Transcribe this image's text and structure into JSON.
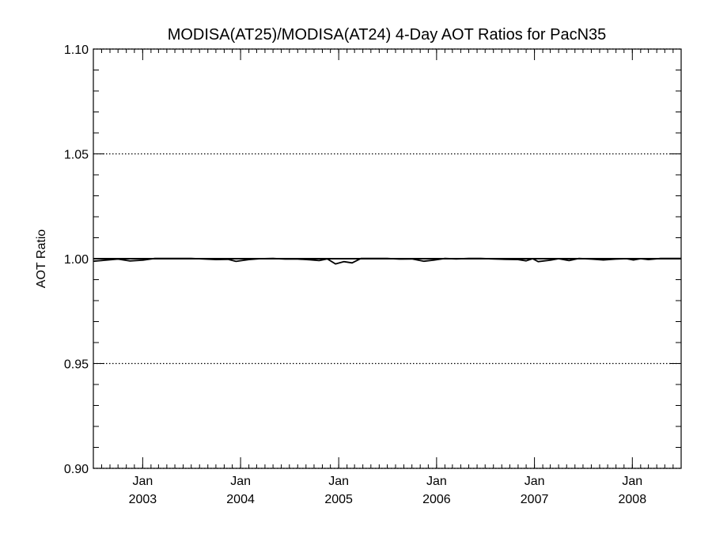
{
  "chart_data": {
    "type": "line",
    "title": "MODISA(AT25)/MODISA(AT24) 4-Day AOT Ratios for PacN35",
    "xlabel": "",
    "ylabel": "AOT Ratio",
    "xlim": [
      "2002-07-01",
      "2008-07-01"
    ],
    "ylim": [
      0.9,
      1.1
    ],
    "y_ticks": [
      "0.90",
      "0.95",
      "1.00",
      "1.05",
      "1.10"
    ],
    "x_ticks": [
      {
        "month": "Jan",
        "year": "2003",
        "date": "2003-01-01"
      },
      {
        "month": "Jan",
        "year": "2004",
        "date": "2004-01-01"
      },
      {
        "month": "Jan",
        "year": "2005",
        "date": "2005-01-01"
      },
      {
        "month": "Jan",
        "year": "2006",
        "date": "2006-01-01"
      },
      {
        "month": "Jan",
        "year": "2007",
        "date": "2007-01-01"
      },
      {
        "month": "Jan",
        "year": "2008",
        "date": "2008-01-01"
      }
    ],
    "grid": "horizontal dotted at major y ticks",
    "reference_line": 1.0,
    "series": [
      {
        "color": "#000000",
        "points": [
          [
            "2002-07-01",
            0.9988
          ],
          [
            "2002-08-15",
            0.9993
          ],
          [
            "2002-10-01",
            0.9998
          ],
          [
            "2002-11-15",
            0.9989
          ],
          [
            "2003-01-01",
            0.9993
          ],
          [
            "2003-02-15",
            1.0001
          ],
          [
            "2003-04-01",
            1.0001
          ],
          [
            "2003-05-15",
            1.0001
          ],
          [
            "2003-07-01",
            1.0001
          ],
          [
            "2003-08-15",
            0.9999
          ],
          [
            "2003-10-01",
            0.9996
          ],
          [
            "2003-11-15",
            0.9997
          ],
          [
            "2003-12-15",
            0.9987
          ],
          [
            "2004-02-01",
            0.9996
          ],
          [
            "2004-03-15",
            1.0
          ],
          [
            "2004-05-01",
            1.0001
          ],
          [
            "2004-06-15",
            0.9998
          ],
          [
            "2004-08-01",
            0.9998
          ],
          [
            "2004-09-15",
            0.9995
          ],
          [
            "2004-10-20",
            0.9991
          ],
          [
            "2004-11-20",
            0.9999
          ],
          [
            "2004-12-20",
            0.9975
          ],
          [
            "2005-01-20",
            0.9986
          ],
          [
            "2005-02-20",
            0.998
          ],
          [
            "2005-03-25",
            1.0001
          ],
          [
            "2005-05-15",
            1.0001
          ],
          [
            "2005-07-01",
            1.0001
          ],
          [
            "2005-08-15",
            0.9998
          ],
          [
            "2005-10-01",
            0.9999
          ],
          [
            "2005-11-15",
            0.9988
          ],
          [
            "2005-12-20",
            0.9993
          ],
          [
            "2006-02-01",
            1.0001
          ],
          [
            "2006-03-15",
            0.9999
          ],
          [
            "2006-05-01",
            1.0001
          ],
          [
            "2006-06-15",
            1.0001
          ],
          [
            "2006-08-01",
            0.9999
          ],
          [
            "2006-09-15",
            0.9997
          ],
          [
            "2006-11-01",
            0.9996
          ],
          [
            "2006-12-01",
            0.999
          ],
          [
            "2006-12-25",
            1.0
          ],
          [
            "2007-01-15",
            0.9986
          ],
          [
            "2007-03-01",
            0.9993
          ],
          [
            "2007-04-01",
            1.0
          ],
          [
            "2007-05-10",
            0.9991
          ],
          [
            "2007-06-15",
            1.0001
          ],
          [
            "2007-08-01",
            0.9998
          ],
          [
            "2007-09-15",
            0.9994
          ],
          [
            "2007-11-01",
            0.9998
          ],
          [
            "2007-12-10",
            1.0
          ],
          [
            "2008-01-05",
            0.9994
          ],
          [
            "2008-02-01",
            1.0
          ],
          [
            "2008-03-01",
            0.9996
          ],
          [
            "2008-04-15",
            1.0001
          ],
          [
            "2008-06-01",
            1.0001
          ],
          [
            "2008-07-01",
            1.0001
          ]
        ]
      }
    ]
  }
}
